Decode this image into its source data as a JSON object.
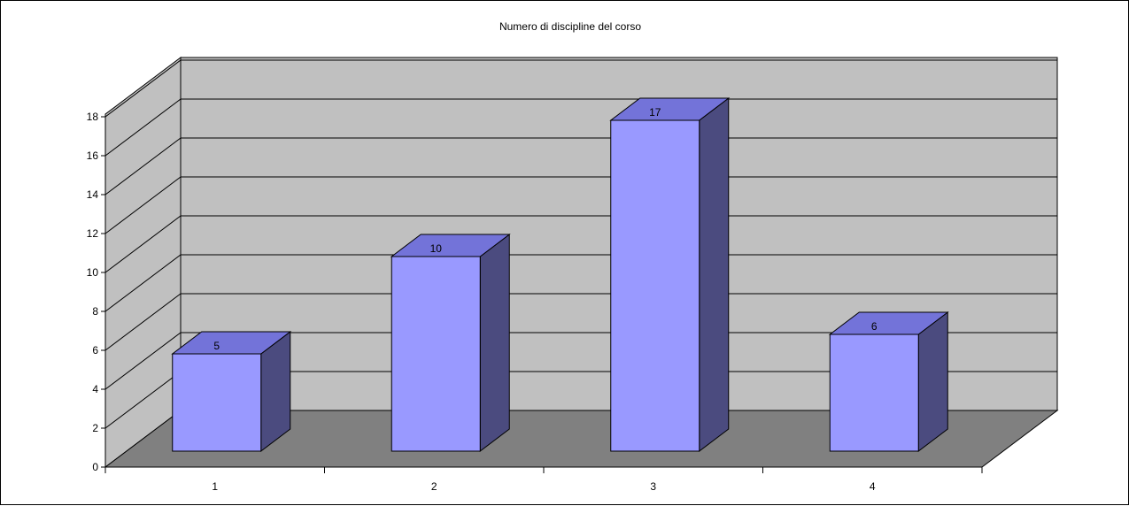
{
  "chart_data": {
    "type": "bar",
    "title": "Numero di discipline del corso",
    "xlabel": "",
    "ylabel": "",
    "categories": [
      "1",
      "2",
      "3",
      "4"
    ],
    "values": [
      5,
      10,
      17,
      6
    ],
    "ylim": [
      0,
      18
    ],
    "y_ticks": [
      "0",
      "2",
      "4",
      "6",
      "8",
      "10",
      "12",
      "14",
      "16",
      "18"
    ],
    "grid": true,
    "legend": "none",
    "three_d": true,
    "colors": {
      "bar_front": "#9999ff",
      "bar_top": "#7373d9",
      "bar_side": "#4b4b7f",
      "back_wall": "#c0c0c0",
      "side_wall": "#c0c0c0",
      "floor": "#808080",
      "gridline": "#000000"
    }
  }
}
